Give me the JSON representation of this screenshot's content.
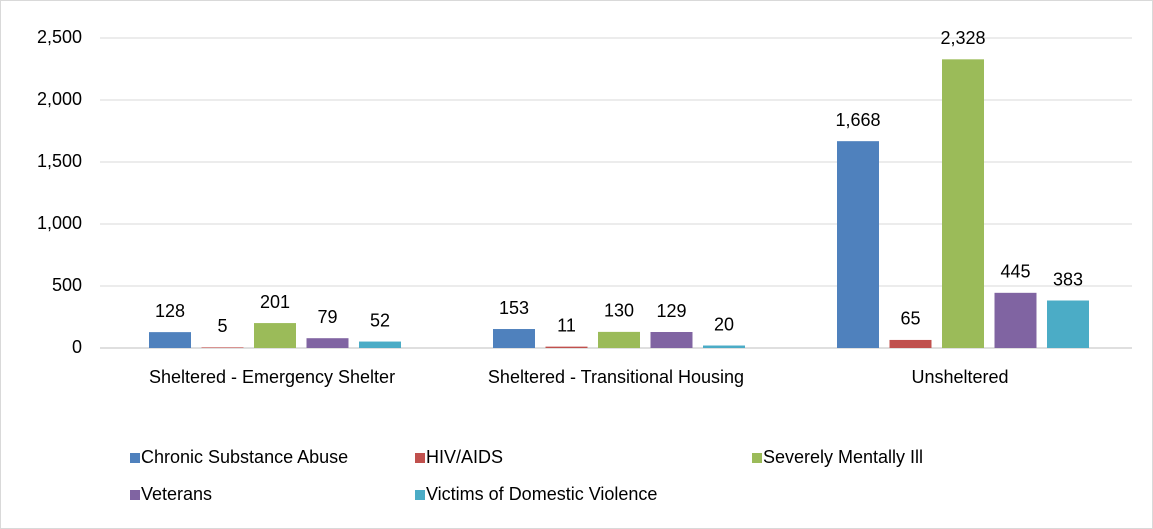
{
  "chart_data": {
    "type": "bar",
    "categories": [
      "Sheltered - Emergency Shelter",
      "Sheltered - Transitional Housing",
      "Unsheltered"
    ],
    "series": [
      {
        "name": "Chronic Substance Abuse",
        "color": "#4f81bd",
        "values": [
          128,
          153,
          1668
        ],
        "value_labels": [
          "128",
          "153",
          "1,668"
        ]
      },
      {
        "name": "HIV/AIDS",
        "color": "#c0504d",
        "values": [
          5,
          11,
          65
        ],
        "value_labels": [
          "5",
          "11",
          "65"
        ]
      },
      {
        "name": "Severely Mentally Ill",
        "color": "#9bbb59",
        "values": [
          201,
          130,
          2328
        ],
        "value_labels": [
          "201",
          "130",
          "2,328"
        ]
      },
      {
        "name": "Veterans",
        "color": "#8064a2",
        "values": [
          79,
          129,
          445
        ],
        "value_labels": [
          "79",
          "129",
          "445"
        ]
      },
      {
        "name": "Victims of Domestic Violence",
        "color": "#4bacc6",
        "values": [
          52,
          20,
          383
        ],
        "value_labels": [
          "52",
          "20",
          "383"
        ]
      }
    ],
    "ylim": [
      0,
      2500
    ],
    "yticks": [
      0,
      500,
      {
        "value": 1000,
        "label": "1,000"
      },
      {
        "value": 1500,
        "label": "1,500"
      },
      {
        "value": 2000,
        "label": "2,000"
      },
      {
        "value": 2500,
        "label": "2,500"
      }
    ],
    "grid": true,
    "legend": "bottom"
  }
}
